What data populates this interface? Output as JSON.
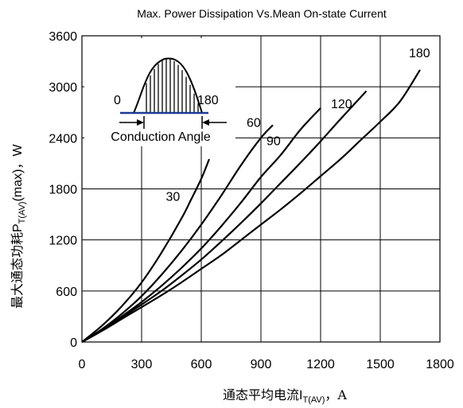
{
  "chart_data": {
    "type": "line",
    "title": "Max. Power Dissipation Vs.Mean On-state Current",
    "xlabel_cn": "通态平均电流",
    "xlabel_sym": "I",
    "xlabel_sub": "T(AV)",
    "xlabel_unit": "，A",
    "ylabel_cn": "最大通态功耗",
    "ylabel_sym": "P",
    "ylabel_sub": "T(AV)",
    "ylabel_rest": "(max)，W",
    "xlim": [
      0,
      1800
    ],
    "ylim": [
      0,
      3600
    ],
    "xticks": [
      0,
      300,
      600,
      900,
      1200,
      1500,
      1800
    ],
    "yticks": [
      0,
      600,
      1200,
      1800,
      2400,
      3000,
      3600
    ],
    "grid": true,
    "series": [
      {
        "name": "30",
        "x": [
          0,
          100,
          200,
          300,
          400,
          500,
          550,
          600,
          640
        ],
        "y": [
          0,
          190,
          420,
          700,
          1050,
          1450,
          1680,
          1920,
          2150
        ]
      },
      {
        "name": "60",
        "x": [
          0,
          100,
          200,
          300,
          400,
          500,
          600,
          700,
          800,
          900,
          960
        ],
        "y": [
          0,
          150,
          330,
          540,
          790,
          1070,
          1380,
          1720,
          2080,
          2400,
          2550
        ]
      },
      {
        "name": "90",
        "x": [
          0,
          100,
          200,
          300,
          400,
          500,
          600,
          700,
          800,
          900,
          1000,
          1100,
          1200
        ],
        "y": [
          0,
          140,
          300,
          470,
          660,
          870,
          1100,
          1360,
          1640,
          1940,
          2200,
          2500,
          2750
        ]
      },
      {
        "name": "120",
        "x": [
          0,
          100,
          200,
          300,
          400,
          500,
          600,
          700,
          800,
          900,
          1000,
          1100,
          1200,
          1300,
          1430
        ],
        "y": [
          0,
          135,
          290,
          440,
          600,
          780,
          970,
          1180,
          1400,
          1630,
          1870,
          2110,
          2360,
          2620,
          2950
        ]
      },
      {
        "name": "180",
        "x": [
          0,
          100,
          200,
          300,
          400,
          500,
          600,
          700,
          800,
          900,
          1000,
          1100,
          1200,
          1300,
          1400,
          1500,
          1600,
          1700
        ],
        "y": [
          0,
          130,
          270,
          410,
          550,
          700,
          860,
          1020,
          1200,
          1380,
          1560,
          1750,
          1950,
          2150,
          2370,
          2590,
          2830,
          3200
        ]
      }
    ],
    "inset": {
      "label_start": "0",
      "label_end": "180",
      "caption": "Conduction Angle"
    }
  }
}
